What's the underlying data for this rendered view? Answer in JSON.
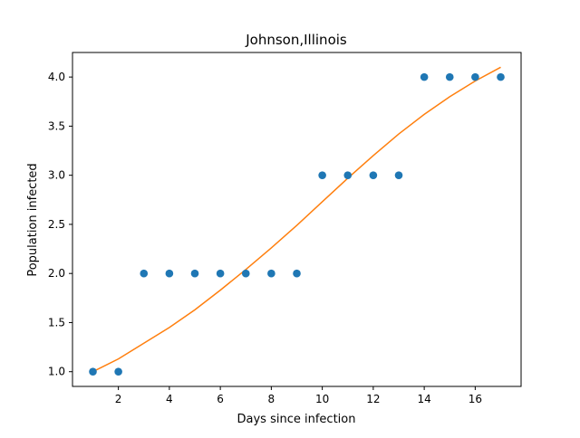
{
  "chart_data": {
    "type": "scatter",
    "title": "Johnson,Illinois",
    "xlabel": "Days since infection",
    "ylabel": "Population infected",
    "xlim": [
      0.2,
      17.8
    ],
    "ylim": [
      0.85,
      4.25
    ],
    "xticks": [
      2,
      4,
      6,
      8,
      10,
      12,
      14,
      16
    ],
    "xtick_labels": [
      "2",
      "4",
      "6",
      "8",
      "10",
      "12",
      "14",
      "16"
    ],
    "yticks": [
      1.0,
      1.5,
      2.0,
      2.5,
      3.0,
      3.5,
      4.0
    ],
    "ytick_labels": [
      "1.0",
      "1.5",
      "2.0",
      "2.5",
      "3.0",
      "3.5",
      "4.0"
    ],
    "grid": false,
    "legend": "none",
    "series": [
      {
        "kind": "scatter",
        "color": "#1f77b4",
        "x": [
          1,
          2,
          3,
          4,
          5,
          6,
          7,
          8,
          9,
          10,
          11,
          12,
          13,
          14,
          15,
          16,
          17
        ],
        "y": [
          1,
          1,
          2,
          2,
          2,
          2,
          2,
          2,
          2,
          3,
          3,
          3,
          3,
          4,
          4,
          4,
          4
        ]
      },
      {
        "kind": "line",
        "color": "#ff7f0e",
        "x": [
          1,
          2,
          3,
          4,
          5,
          6,
          7,
          8,
          9,
          10,
          11,
          12,
          13,
          14,
          15,
          16,
          17
        ],
        "y": [
          1.0,
          1.13,
          1.29,
          1.45,
          1.63,
          1.83,
          2.04,
          2.26,
          2.49,
          2.73,
          2.97,
          3.2,
          3.42,
          3.62,
          3.8,
          3.96,
          4.1
        ]
      }
    ]
  }
}
